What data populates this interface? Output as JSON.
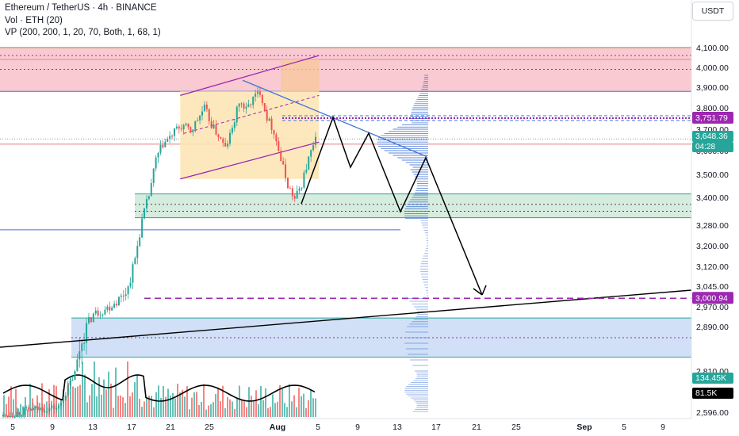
{
  "header": {
    "title": "Ethereum / TetherUS · 4h · BINANCE",
    "vol_indicator": "Vol · ETH (20)",
    "vp_indicator": "VP (200, 200, 1, 20, 70, Both, 1, 68, 1)"
  },
  "currency_label": "USDT",
  "colors": {
    "up": "#26a69a",
    "down": "#ef5350",
    "resistance_zone": "#f8c1c9",
    "support_zone": "#cfe9d9",
    "lower_zone": "#c9dbf5",
    "channel": "#9c27b0",
    "trendline_blue": "#3f73d6",
    "wedge_fill": "#fde6b6",
    "target_purple": "#9c27b0",
    "projection": "#000000"
  },
  "price_tags": {
    "level_high": "3,751.79",
    "current_price": "3,648.36",
    "countdown": "04:28",
    "level_target": "3,000.94",
    "vol_1": "134.45K",
    "vol_2": "81.5K"
  },
  "chart_data": {
    "type": "candlestick",
    "symbol": "ETHUSDT",
    "interval": "4h",
    "y_axis": {
      "ticks": [
        2596,
        2810,
        2890,
        2970,
        3045,
        3120,
        3200,
        3280,
        3400,
        3500,
        3600,
        3700,
        3800,
        3900,
        4000,
        4100
      ],
      "labels": [
        "2,596.00",
        "2,810.00",
        "2,890.00",
        "2,970.00",
        "3,045.00",
        "3,120.00",
        "3,200.00",
        "3,280.00",
        "3,400.00",
        "3,500.00",
        "3,600.00",
        "3,700.00",
        "3,800.00",
        "3,900.00",
        "4,000.00",
        "4,100.00"
      ]
    },
    "x_axis": {
      "labels": [
        "5",
        "9",
        "13",
        "17",
        "21",
        "25",
        "Aug",
        "5",
        "9",
        "13",
        "17",
        "21",
        "25",
        "Sep",
        "5",
        "9"
      ],
      "bold": [
        "Aug",
        "Sep"
      ]
    },
    "price_path": [
      [
        0,
        2575
      ],
      [
        4,
        2610
      ],
      [
        8,
        2620
      ],
      [
        11,
        2850
      ],
      [
        13,
        2940
      ],
      [
        15,
        2965
      ],
      [
        17,
        3005
      ],
      [
        18,
        3040
      ],
      [
        19,
        3150
      ],
      [
        20,
        3300
      ],
      [
        21,
        3410
      ],
      [
        22,
        3560
      ],
      [
        23,
        3630
      ],
      [
        24,
        3660
      ],
      [
        25,
        3700
      ],
      [
        26,
        3715
      ],
      [
        27,
        3690
      ],
      [
        28,
        3745
      ],
      [
        29,
        3800
      ],
      [
        30,
        3720
      ],
      [
        31,
        3670
      ],
      [
        32,
        3610
      ],
      [
        33,
        3700
      ],
      [
        34,
        3830
      ],
      [
        35,
        3790
      ],
      [
        36,
        3845
      ],
      [
        37,
        3880
      ],
      [
        38,
        3755
      ],
      [
        39,
        3690
      ],
      [
        40,
        3560
      ],
      [
        41,
        3455
      ],
      [
        42,
        3390
      ],
      [
        43,
        3460
      ],
      [
        44,
        3565
      ],
      [
        45,
        3648
      ]
    ],
    "zones": [
      {
        "name": "resistance",
        "from": 3880,
        "to": 4100
      },
      {
        "name": "support",
        "from": 3312,
        "to": 3415
      },
      {
        "name": "lower",
        "from": 2835,
        "to": 2925
      }
    ],
    "levels": {
      "high": 3751.79,
      "current": 3648.36,
      "target": 3000.94
    },
    "projection_path": [
      [
        3380,
        "start"
      ],
      [
        3750,
        "peak"
      ],
      [
        3555,
        "dip"
      ],
      [
        3720,
        "peak"
      ],
      [
        3340,
        "low"
      ],
      [
        3580,
        "retest"
      ],
      [
        3000,
        "target"
      ]
    ],
    "volume": {
      "last": "134.45K",
      "ma": "81.5K"
    }
  }
}
